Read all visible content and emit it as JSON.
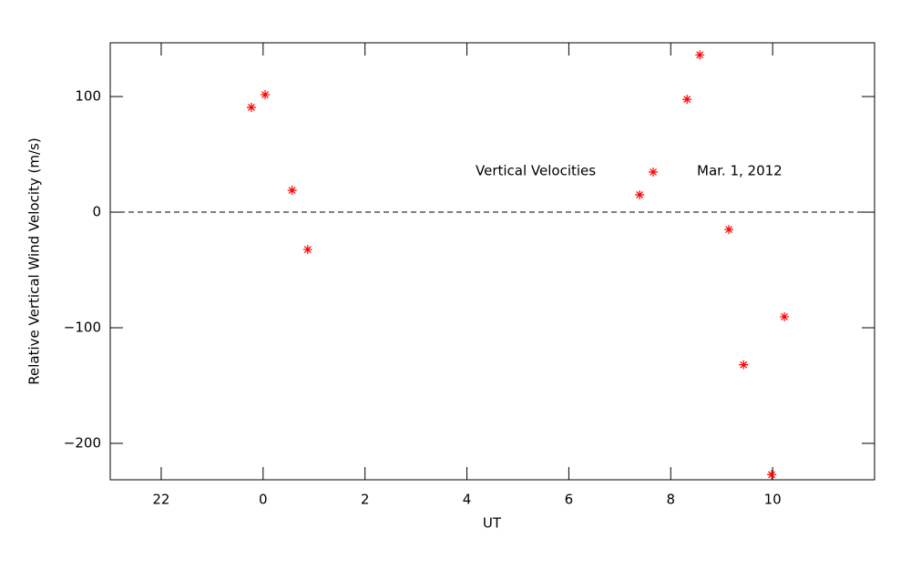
{
  "chart_data": {
    "type": "scatter",
    "xlabel": "UT",
    "ylabel": "Relative Vertical Wind Velocity (m/s)",
    "annotation": "Mar. 1, 2012",
    "xlim": [
      -3,
      12
    ],
    "ylim": [
      -231.5,
      146.5
    ],
    "xticks": [
      {
        "value": -2,
        "label": "22"
      },
      0,
      2,
      4,
      6,
      8,
      10
    ],
    "yticks": [
      {
        "value": -200,
        "label": "−200"
      },
      {
        "value": -100,
        "label": "−100"
      },
      0,
      100
    ],
    "hline": 0,
    "series": [
      {
        "name": "Vertical Velocities",
        "color": "#ff0000",
        "x": [
          -0.23,
          0.04,
          0.57,
          0.875,
          7.39,
          8.32,
          8.57,
          9.14,
          9.43,
          9.98,
          10.23
        ],
        "values": [
          90.6,
          101.6,
          18.9,
          -32.3,
          15,
          97.6,
          136,
          -15,
          -132,
          -227,
          -90.5
        ]
      }
    ]
  }
}
